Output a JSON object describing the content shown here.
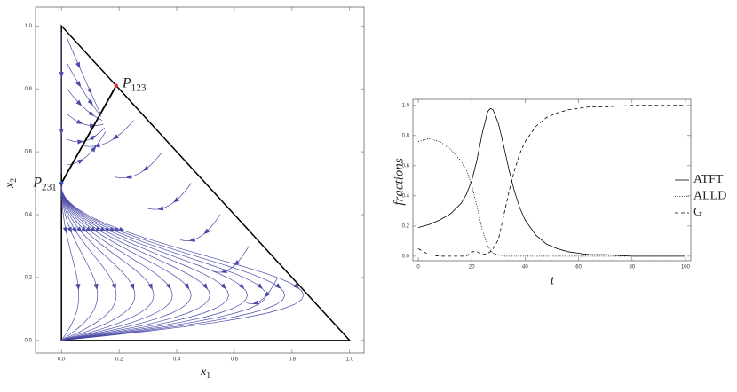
{
  "chart_data": [
    {
      "type": "streamplot",
      "xlabel": {
        "text": "x",
        "subscript": "1"
      },
      "ylabel": {
        "text": "x",
        "subscript": "2"
      },
      "xlim": [
        -0.09,
        1.05
      ],
      "ylim": [
        -0.04,
        1.06
      ],
      "xticks": [
        {
          "value": 0,
          "label": "0.0"
        },
        0.2,
        0.4,
        0.6,
        0.8,
        {
          "value": 1,
          "label": "1.0"
        }
      ],
      "yticks": [
        {
          "value": 0,
          "label": "0.0"
        },
        0.2,
        0.4,
        0.6,
        0.8,
        {
          "value": 1,
          "label": "1.0"
        }
      ],
      "color": "#4a4aa8",
      "points": [
        {
          "label": "P",
          "subscript": "123",
          "x": 0.19,
          "y": 0.81,
          "color": "#e03030"
        },
        {
          "label": "P",
          "subscript": "231",
          "x": 0,
          "y": 0.5,
          "color": "#3050d0"
        }
      ]
    },
    {
      "type": "line",
      "xlabel": "t",
      "ylabel": "fractions",
      "xlim": [
        -2,
        102
      ],
      "ylim": [
        -0.03,
        1.04
      ],
      "xticks": [
        0,
        20,
        40,
        60,
        80,
        100
      ],
      "yticks": [
        {
          "value": 0,
          "label": "0.0"
        },
        0.2,
        0.4,
        0.6,
        0.8,
        {
          "value": 1,
          "label": "1.0"
        }
      ],
      "x": [
        0,
        4,
        8,
        12,
        16,
        18,
        20,
        22,
        24,
        26,
        27,
        28,
        30,
        32,
        34,
        36,
        38,
        40,
        44,
        48,
        52,
        56,
        60,
        64,
        70,
        80,
        90,
        100
      ],
      "series": [
        {
          "name": "ATFT",
          "color": "#000000",
          "dash": "solid",
          "values": [
            0.19,
            0.21,
            0.24,
            0.28,
            0.35,
            0.41,
            0.5,
            0.64,
            0.82,
            0.96,
            0.98,
            0.97,
            0.88,
            0.73,
            0.57,
            0.43,
            0.32,
            0.24,
            0.14,
            0.08,
            0.05,
            0.03,
            0.02,
            0.01,
            0.01,
            0,
            0,
            0
          ]
        },
        {
          "name": "ALLD",
          "color": "#000000",
          "dash": "dotted",
          "values": [
            0.76,
            0.78,
            0.76,
            0.71,
            0.63,
            0.57,
            0.47,
            0.33,
            0.17,
            0.07,
            0.04,
            0.02,
            0.01,
            0,
            0,
            0,
            0,
            0,
            0,
            0,
            0,
            0,
            0,
            0,
            0,
            0,
            0,
            0
          ]
        },
        {
          "name": "G",
          "color": "#000000",
          "dash": "dashed",
          "values": [
            0.05,
            0.01,
            0,
            0,
            0,
            0,
            0.03,
            0.03,
            0.01,
            0.02,
            0.03,
            0.05,
            0.11,
            0.27,
            0.43,
            0.57,
            0.68,
            0.76,
            0.86,
            0.92,
            0.95,
            0.97,
            0.98,
            0.99,
            0.99,
            1,
            1,
            1
          ]
        }
      ]
    }
  ]
}
